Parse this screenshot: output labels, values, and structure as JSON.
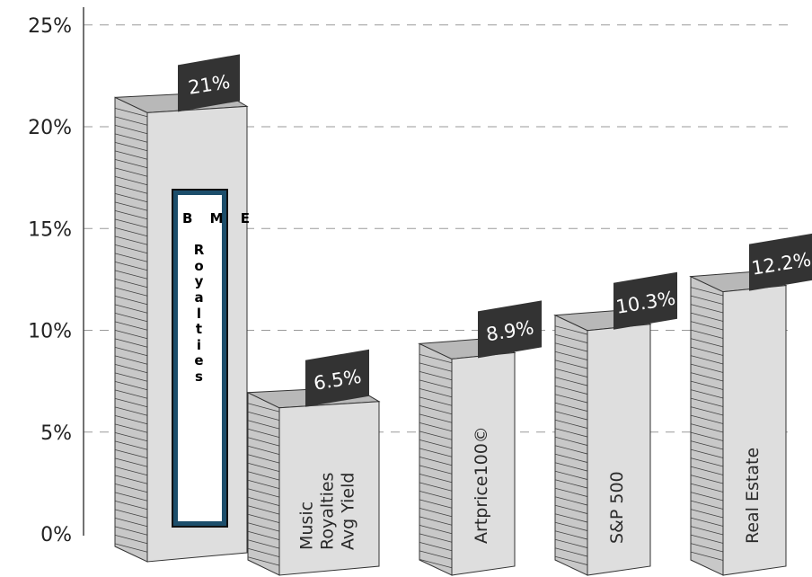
{
  "chart_data": {
    "type": "bar",
    "categories": [
      "",
      "Music Royalties Avg Yield",
      "Artprice100©",
      "S&P 500",
      "Real Estate"
    ],
    "category_lines": [
      [],
      [
        "Music",
        "Royalties",
        "Avg Yield"
      ],
      [
        "Artprice100©"
      ],
      [
        "S&P 500"
      ],
      [
        "Real Estate"
      ]
    ],
    "values": [
      21,
      6.5,
      8.9,
      10.3,
      12.2
    ],
    "data_labels": [
      "21%",
      "6.5%",
      "8.9%",
      "10.3%",
      "12.2%"
    ],
    "y_ticks": [
      0,
      5,
      10,
      15,
      20,
      25
    ],
    "y_tick_labels": [
      "0%",
      "5%",
      "10%",
      "15%",
      "20%",
      "25%"
    ],
    "ylim": [
      0,
      25
    ],
    "grid": "dashed horizontal",
    "style": "3d",
    "title": "",
    "xlabel": "",
    "ylabel": "",
    "bar_face_color": "#dedede",
    "bar_side_color": "#c8c8c8",
    "label_box_color": "#333333",
    "highlight_label": {
      "text": "BME Royalties",
      "lines": [
        "B M E",
        "",
        "R",
        "o",
        "y",
        "a",
        "l",
        "t",
        "i",
        "e",
        "s"
      ],
      "border_color": "#1c4e6b"
    }
  }
}
